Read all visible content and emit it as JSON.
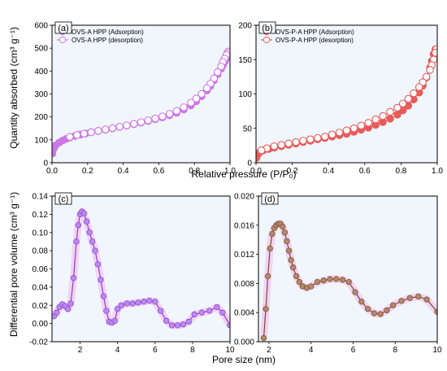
{
  "figure": {
    "shared_xlabel_top": "Relative pressure (P/P₀)",
    "ylabel_top": "Quantity absorbed (cm³ g⁻¹)",
    "shared_xlabel_bottom": "Pore size (nm)",
    "ylabel_bottom": "Differential pore volume (cm³ g⁻¹)"
  },
  "chart_data": [
    {
      "id": "a",
      "panel_label": "(a)",
      "type": "scatter",
      "xlim": [
        0,
        1
      ],
      "ylim": [
        0,
        600
      ],
      "xticks": [
        "0.0",
        "0.2",
        "0.4",
        "0.6",
        "0.8",
        "1.0"
      ],
      "yticks": [
        "0",
        "100",
        "200",
        "300",
        "400",
        "500",
        "600"
      ],
      "legend_position": "top-left",
      "colors": {
        "adsorption": "#cc77e6",
        "desorption": "#cc77e6",
        "background": "#f0f6fc"
      },
      "series": [
        {
          "name": "OVS-A HPP (Adsorption)",
          "style": "filled",
          "x": [
            0.002,
            0.01,
            0.02,
            0.04,
            0.06,
            0.08,
            0.1,
            0.13,
            0.16,
            0.19,
            0.22,
            0.26,
            0.3,
            0.34,
            0.38,
            0.42,
            0.46,
            0.5,
            0.54,
            0.58,
            0.62,
            0.66,
            0.7,
            0.74,
            0.78,
            0.81,
            0.84,
            0.87,
            0.89,
            0.91,
            0.93,
            0.95,
            0.96,
            0.97,
            0.98,
            0.985,
            0.99
          ],
          "y": [
            40,
            62,
            75,
            88,
            97,
            104,
            110,
            117,
            123,
            128,
            133,
            139,
            144,
            150,
            156,
            162,
            168,
            175,
            182,
            190,
            198,
            207,
            218,
            232,
            250,
            268,
            290,
            315,
            335,
            360,
            385,
            410,
            425,
            440,
            455,
            465,
            475
          ]
        },
        {
          "name": "OVS-A HPP (desorption)",
          "style": "open",
          "x": [
            0.99,
            0.985,
            0.98,
            0.97,
            0.96,
            0.95,
            0.93,
            0.91,
            0.89,
            0.87,
            0.84,
            0.81,
            0.78,
            0.74,
            0.7,
            0.66,
            0.62,
            0.58,
            0.54,
            0.5,
            0.46,
            0.42,
            0.38,
            0.34,
            0.3,
            0.26,
            0.22,
            0.18,
            0.14,
            0.1
          ],
          "y": [
            485,
            478,
            470,
            455,
            440,
            420,
            395,
            368,
            345,
            325,
            300,
            280,
            262,
            242,
            226,
            213,
            202,
            193,
            185,
            177,
            170,
            163,
            157,
            151,
            145,
            139,
            133,
            127,
            121,
            113
          ]
        }
      ]
    },
    {
      "id": "b",
      "panel_label": "(b)",
      "type": "scatter",
      "xlim": [
        0,
        1
      ],
      "ylim": [
        0,
        200
      ],
      "xticks": [
        "0.0",
        "0.2",
        "0.4",
        "0.6",
        "0.8",
        "1.0"
      ],
      "yticks": [
        "0",
        "50",
        "100",
        "150",
        "200"
      ],
      "legend_position": "top-left",
      "colors": {
        "adsorption": "#e85a5a",
        "desorption": "#e85a5a",
        "background": "#f0f6fc"
      },
      "series": [
        {
          "name": "OVS-P-A HPP (Adsorption)",
          "style": "filled",
          "x": [
            0.002,
            0.01,
            0.02,
            0.04,
            0.07,
            0.1,
            0.14,
            0.18,
            0.22,
            0.26,
            0.3,
            0.34,
            0.38,
            0.42,
            0.46,
            0.5,
            0.54,
            0.58,
            0.62,
            0.66,
            0.7,
            0.74,
            0.78,
            0.81,
            0.84,
            0.87,
            0.9,
            0.92,
            0.94,
            0.96,
            0.97,
            0.98,
            0.99
          ],
          "y": [
            7,
            12,
            15,
            18,
            20,
            22,
            24,
            26,
            28,
            30,
            32,
            34,
            36,
            38,
            40,
            42,
            45,
            48,
            51,
            55,
            59,
            64,
            70,
            76,
            83,
            92,
            102,
            112,
            124,
            138,
            148,
            158,
            165
          ]
        },
        {
          "name": "OVS-P-A HPP (desorption)",
          "style": "open",
          "x": [
            0.995,
            0.99,
            0.98,
            0.97,
            0.96,
            0.94,
            0.92,
            0.9,
            0.87,
            0.84,
            0.81,
            0.78,
            0.74,
            0.7,
            0.66,
            0.62,
            0.58,
            0.54,
            0.5,
            0.46,
            0.42,
            0.38,
            0.34,
            0.3,
            0.26,
            0.22,
            0.18,
            0.14,
            0.1,
            0.06,
            0.03
          ],
          "y": [
            165,
            160,
            150,
            142,
            135,
            125,
            117,
            110,
            101,
            93,
            86,
            80,
            74,
            68,
            63,
            58,
            54,
            50,
            47,
            44,
            41,
            38,
            36,
            34,
            32,
            30,
            28,
            26,
            24,
            21,
            18
          ]
        }
      ]
    },
    {
      "id": "c",
      "panel_label": "(c)",
      "type": "line",
      "xlim": [
        0.5,
        10
      ],
      "ylim": [
        -0.02,
        0.14
      ],
      "xticks": [
        "2",
        "4",
        "6",
        "8",
        "10"
      ],
      "yticks": [
        "-0.02",
        "0.00",
        "0.02",
        "0.04",
        "0.06",
        "0.08",
        "0.10",
        "0.12",
        "0.14"
      ],
      "colors": {
        "line": "#8a3fc8",
        "marker": "#b98af0",
        "glow": "#f3c9f3",
        "background": "#f0f6fc"
      },
      "series": [
        {
          "x": [
            0.6,
            0.75,
            0.9,
            1.05,
            1.2,
            1.35,
            1.5,
            1.65,
            1.8,
            1.9,
            2.0,
            2.1,
            2.2,
            2.35,
            2.5,
            2.65,
            2.8,
            2.95,
            3.1,
            3.25,
            3.4,
            3.55,
            3.7,
            3.85,
            4.0,
            4.2,
            4.5,
            4.8,
            5.1,
            5.4,
            5.7,
            6.0,
            6.3,
            6.6,
            6.9,
            7.2,
            7.5,
            7.8,
            8.1,
            8.5,
            8.9,
            9.3,
            9.6,
            10.0
          ],
          "y": [
            0.008,
            0.012,
            0.018,
            0.021,
            0.019,
            0.016,
            0.022,
            0.05,
            0.09,
            0.108,
            0.12,
            0.123,
            0.121,
            0.112,
            0.1,
            0.09,
            0.08,
            0.065,
            0.048,
            0.03,
            0.014,
            0.002,
            0.001,
            0.003,
            0.016,
            0.02,
            0.022,
            0.022,
            0.023,
            0.024,
            0.025,
            0.024,
            0.014,
            0.003,
            -0.002,
            -0.002,
            -0.001,
            0.002,
            0.01,
            0.012,
            0.014,
            0.018,
            0.012,
            -0.002
          ]
        }
      ]
    },
    {
      "id": "d",
      "panel_label": "(d)",
      "type": "line",
      "xlim": [
        1.5,
        10
      ],
      "ylim": [
        0,
        0.02
      ],
      "xticks": [
        "2",
        "4",
        "6",
        "8",
        "10"
      ],
      "yticks": [
        "0.000",
        "0.004",
        "0.008",
        "0.012",
        "0.016",
        "0.020"
      ],
      "colors": {
        "line": "#7a4a2e",
        "marker": "#b08a6a",
        "glow": "#f3c9f3",
        "background": "#f0f6fc"
      },
      "series": [
        {
          "x": [
            1.75,
            1.85,
            1.95,
            2.05,
            2.15,
            2.25,
            2.35,
            2.45,
            2.55,
            2.65,
            2.75,
            2.85,
            2.95,
            3.05,
            3.15,
            3.3,
            3.45,
            3.6,
            3.8,
            4.0,
            4.3,
            4.6,
            4.9,
            5.2,
            5.5,
            5.8,
            6.1,
            6.4,
            6.7,
            7.0,
            7.3,
            7.6,
            7.9,
            8.3,
            8.7,
            9.1,
            9.5,
            10.0
          ],
          "y": [
            0.0005,
            0.0045,
            0.009,
            0.0128,
            0.0148,
            0.0156,
            0.016,
            0.0162,
            0.0162,
            0.0158,
            0.015,
            0.0138,
            0.0125,
            0.0112,
            0.0102,
            0.009,
            0.0082,
            0.0076,
            0.0074,
            0.0076,
            0.0082,
            0.0084,
            0.0086,
            0.0086,
            0.0085,
            0.0082,
            0.0068,
            0.0055,
            0.0045,
            0.0039,
            0.0038,
            0.0043,
            0.005,
            0.0056,
            0.006,
            0.0062,
            0.0058,
            0.0041
          ]
        }
      ]
    }
  ]
}
